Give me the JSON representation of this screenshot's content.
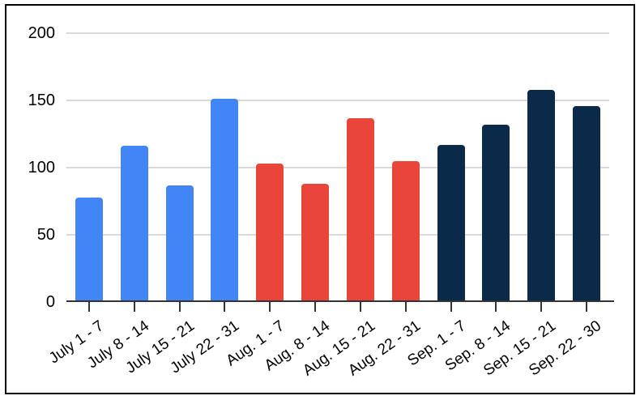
{
  "chart_data": {
    "type": "bar",
    "title": "",
    "xlabel": "",
    "ylabel": "",
    "categories": [
      "July 1 - 7",
      "July 8 - 14",
      "July 15 - 21",
      "July 22 - 31",
      "Aug. 1 - 7",
      "Aug. 8 - 14",
      "Aug. 15 - 21",
      "Aug. 22 - 31",
      "Sep. 1 - 7",
      "Sep. 8 - 14",
      "Sep. 15 - 21",
      "Sep. 22 - 30"
    ],
    "values": [
      78,
      116,
      87,
      151,
      103,
      88,
      137,
      105,
      117,
      132,
      158,
      146
    ],
    "bar_colors": [
      "#4285F4",
      "#4285F4",
      "#4285F4",
      "#4285F4",
      "#E9453B",
      "#E9453B",
      "#E9453B",
      "#E9453B",
      "#0B2A4A",
      "#0B2A4A",
      "#0B2A4A",
      "#0B2A4A"
    ],
    "ylim": [
      0,
      200
    ],
    "yticks": [
      0,
      50,
      100,
      150,
      200
    ],
    "grid": true,
    "legend": false,
    "colors": {
      "july_series": "#4285F4",
      "august_series": "#E9453B",
      "september_series": "#0B2A4A",
      "gridline": "#D9D9D9",
      "axis_line": "#333333",
      "tick": "#333333",
      "label_text": "#000000",
      "background": "#FFFFFF",
      "border": "#000000"
    }
  }
}
